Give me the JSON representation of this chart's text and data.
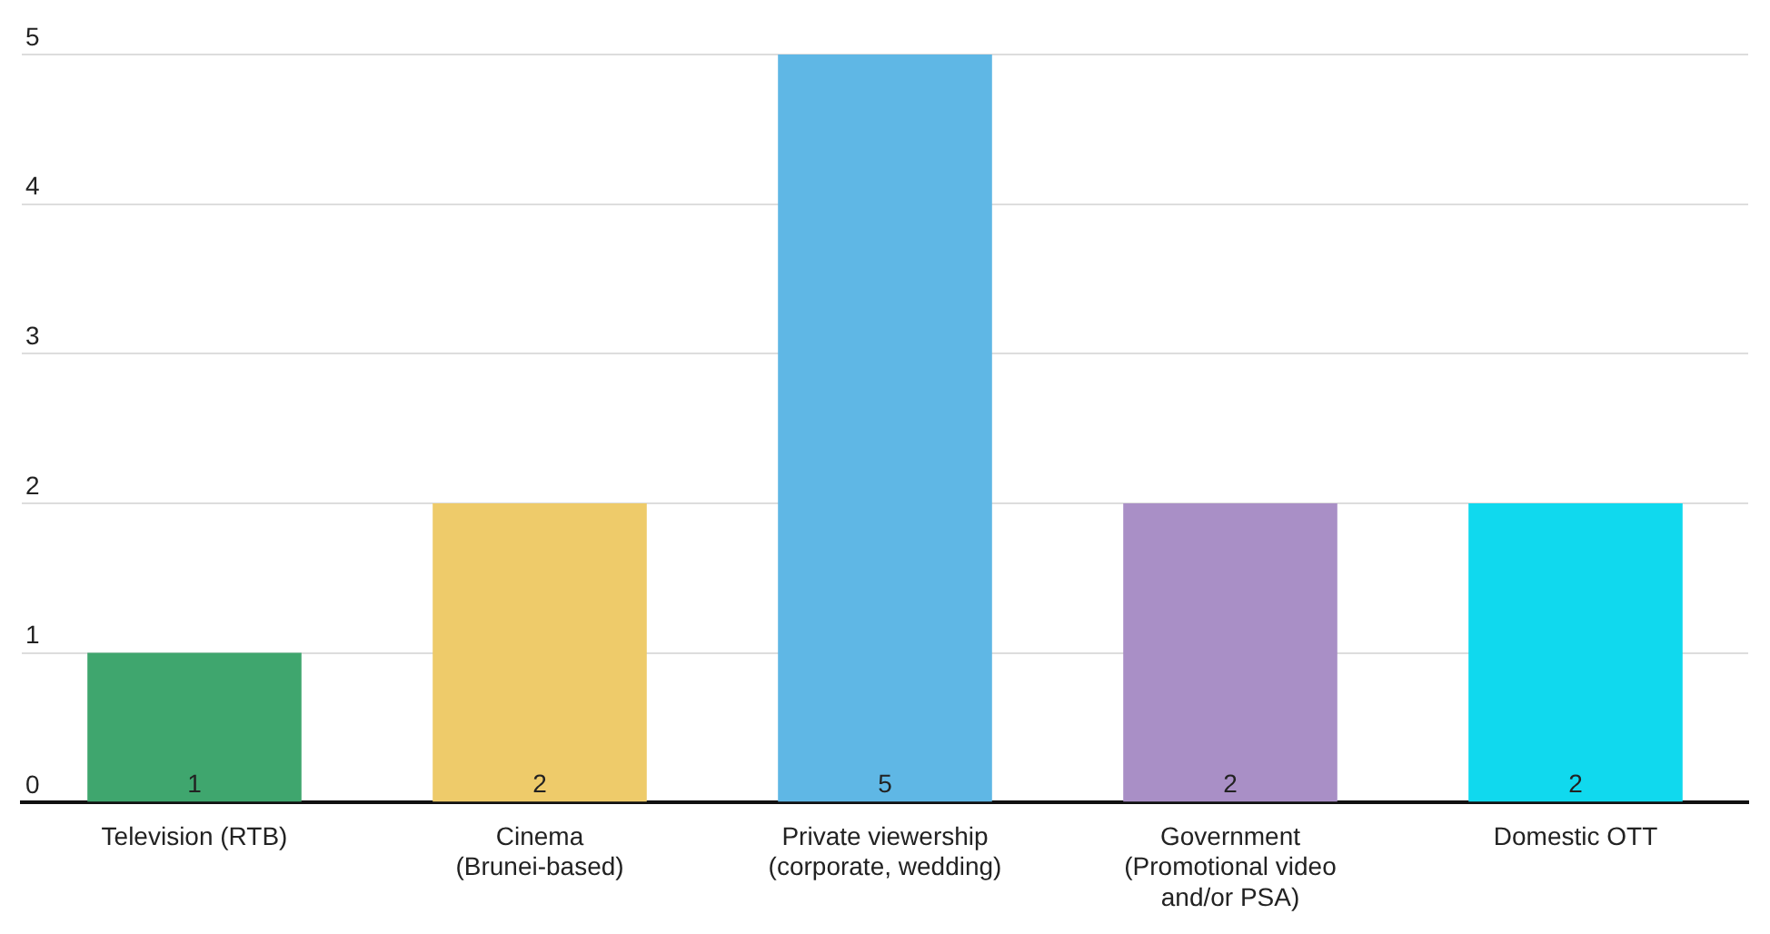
{
  "chart_data": {
    "type": "bar",
    "categories": [
      "Television (RTB)",
      "Cinema (Brunei-based)",
      "Private viewership (corporate, wedding)",
      "Government (Promotional video and/or PSA)",
      "Domestic OTT"
    ],
    "values": [
      1,
      2,
      5,
      2,
      2
    ],
    "colors": [
      "#3fa66e",
      "#eecb6a",
      "#5fb7e5",
      "#a98fc6",
      "#10d9ee"
    ],
    "ylim": [
      0,
      5
    ],
    "yticks": [
      0,
      1,
      2,
      3,
      4,
      5
    ],
    "grid": "y",
    "legend": false,
    "data_labels": true
  }
}
